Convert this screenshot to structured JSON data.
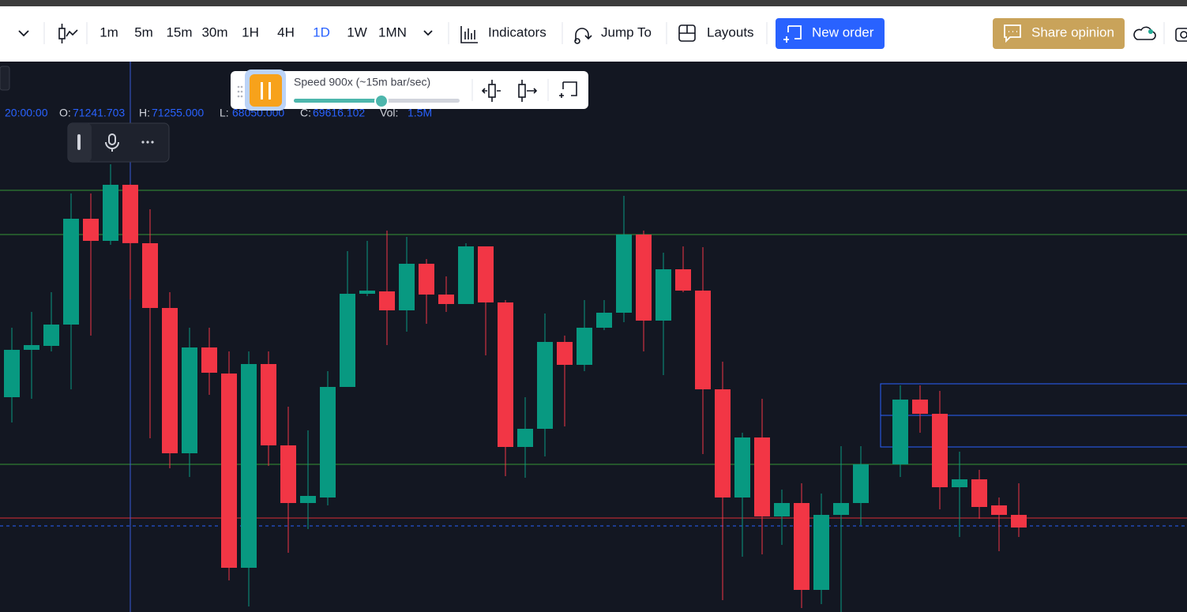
{
  "toolbar": {
    "timeframes": [
      "1m",
      "5m",
      "15m",
      "30m",
      "1H",
      "4H",
      "1D",
      "1W",
      "1MN"
    ],
    "active_timeframe": "1D",
    "indicators": "Indicators",
    "jump_to": "Jump To",
    "layouts": "Layouts",
    "new_order": "New order",
    "share_opinion": "Share opinion"
  },
  "replay": {
    "speed": "Speed 900x (~15m bar/sec)"
  },
  "legend": {
    "time": "20:00:00",
    "open_label": "O:",
    "open": "71241.703",
    "high_label": "H:",
    "high": "71255.000",
    "low_label": "L:",
    "low": "68050.000",
    "close_label": "C:",
    "close": "69616.102",
    "vol_label": "Vol:",
    "vol": "1.5M"
  },
  "chart_data": {
    "type": "candlestick",
    "up_color": "#089981",
    "down_color": "#f23645",
    "ylim": [
      59340,
      74630
    ],
    "open": [
      65324,
      66644,
      66754,
      67348,
      70296,
      69680,
      71241.703,
      69614,
      67810,
      63762,
      66710,
      65984,
      60572,
      66248,
      63982,
      62376,
      62530,
      65610,
      68206,
      68272,
      67744,
      69042,
      68184,
      67920,
      69526,
      67964,
      63938,
      64444,
      66864,
      66226,
      67260,
      67678,
      69856,
      67458,
      68888,
      68294,
      65544,
      62530,
      64202,
      62002,
      62376,
      59956,
      62046,
      62376,
      null,
      63454,
      65258,
      64862,
      62816,
      63036,
      62310,
      62046
    ],
    "high": [
      67260,
      67700,
      68250,
      71000,
      71000,
      71814,
      71255,
      70560,
      68250,
      67260,
      67260,
      66600,
      66600,
      66600,
      65060,
      64400,
      66050,
      69394,
      69680,
      69966,
      69790,
      69174,
      68690,
      69614,
      69526,
      68030,
      65324,
      67656,
      67040,
      68030,
      68030,
      70934,
      69966,
      69350,
      69526,
      69504,
      66314,
      64334,
      65280,
      62750,
      62926,
      62640,
      63960,
      63960,
      null,
      65654,
      65654,
      65500,
      63806,
      63300,
      62530,
      62926
    ],
    "low": [
      64620,
      65280,
      66600,
      65544,
      67040,
      69570,
      68050,
      64180,
      63344,
      63102,
      65390,
      60220,
      59494,
      63410,
      60990,
      61650,
      62310,
      65610,
      68140,
      66776,
      67150,
      67370,
      67700,
      67920,
      66490,
      63124,
      63080,
      63674,
      64510,
      66050,
      67194,
      67414,
      66600,
      65940,
      68250,
      63740,
      59670,
      60880,
      60946,
      61210,
      59450,
      59560,
      59340,
      61760,
      null,
      63102,
      64334,
      62200,
      61430,
      61936,
      61034,
      61430
    ],
    "close": [
      66644,
      66776,
      67348,
      70296,
      69680,
      71242,
      69616.102,
      67810,
      63762,
      66710,
      66006,
      60572,
      66248,
      63982,
      62376,
      62574,
      65610,
      68206,
      68294,
      67744,
      69042,
      68184,
      67920,
      69526,
      67964,
      63938,
      64444,
      66864,
      66226,
      67260,
      67678,
      69856,
      67458,
      68888,
      68294,
      65544,
      62530,
      64202,
      62002,
      62376,
      59956,
      62046,
      62376,
      63454,
      null,
      65258,
      64862,
      62816,
      63036,
      62266,
      62046,
      61694
    ]
  }
}
